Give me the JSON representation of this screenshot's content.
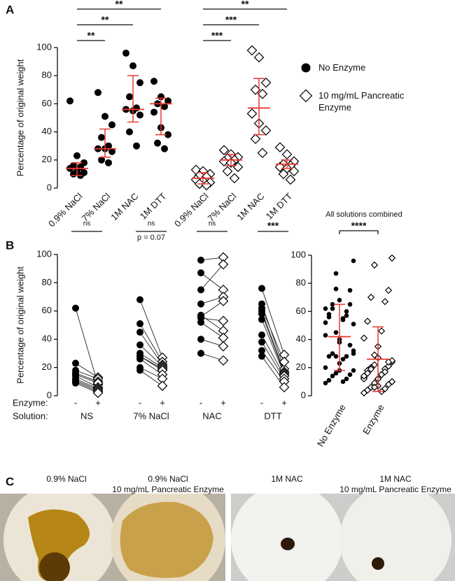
{
  "chart_data": [
    {
      "type": "dot",
      "panel": "A",
      "ylabel": "Percentage of original weight",
      "categories": [
        "0.9% NaCl",
        "7% NaCl",
        "1M NAC",
        "1M DTT",
        "0.9% NaCl",
        "7% NaCl",
        "1M NAC",
        "1M DTT"
      ],
      "ylim": [
        0,
        100
      ],
      "yticks": [
        0,
        20,
        40,
        60,
        80,
        100
      ],
      "error_color": "#e8392f",
      "series": [
        {
          "name": "No Enzyme",
          "color": "#000000",
          "marker": "circle",
          "values": [
            [
              62,
              23,
              18,
              16,
              15,
              14,
              12,
              11,
              10,
              9
            ],
            [
              68,
              51,
              45,
              36,
              30,
              28,
              28,
              26,
              20,
              18
            ],
            [
              96,
              87,
              75,
              65,
              57,
              56,
              55,
              52,
              40,
              30
            ],
            [
              76,
              65,
              62,
              60,
              58,
              54,
              43,
              38,
              32,
              28
            ],
            null,
            null,
            null,
            null
          ],
          "center": [
            14,
            28,
            56,
            60,
            null,
            null,
            null,
            null
          ],
          "low": [
            9,
            22,
            47,
            38,
            null,
            null,
            null,
            null
          ],
          "high": [
            18,
            42,
            80,
            64,
            null,
            null,
            null,
            null
          ]
        },
        {
          "name": "10 mg/mL Pancreatic Enzyme",
          "color": "#000000",
          "marker": "diamond",
          "values": [
            null,
            null,
            null,
            null,
            [
              13,
              12,
              10,
              9,
              8,
              6,
              5,
              4,
              3,
              2
            ],
            [
              27,
              24,
              22,
              21,
              20,
              19,
              18,
              15,
              12,
              7
            ],
            [
              98,
              93,
              75,
              70,
              67,
              53,
              46,
              41,
              35,
              25
            ],
            [
              29,
              24,
              19,
              17,
              16,
              15,
              14,
              12,
              10,
              6
            ]
          ],
          "center": [
            null,
            null,
            null,
            null,
            7,
            20,
            57,
            17
          ],
          "low": [
            null,
            null,
            null,
            null,
            3,
            16,
            38,
            14
          ],
          "high": [
            null,
            null,
            null,
            null,
            11,
            24,
            78,
            20
          ]
        }
      ],
      "comparisons": [
        {
          "categories": [
            0,
            1
          ],
          "label": "**"
        },
        {
          "categories": [
            0,
            2
          ],
          "label": "**"
        },
        {
          "categories": [
            0,
            3
          ],
          "label": "**"
        },
        {
          "categories": [
            4,
            5
          ],
          "label": "***"
        },
        {
          "categories": [
            4,
            6
          ],
          "label": "***"
        },
        {
          "categories": [
            4,
            7
          ],
          "label": "**"
        }
      ]
    },
    {
      "type": "paired",
      "panel": "B",
      "ylabel": "Percentage of original weight",
      "categories": [
        "NS",
        "7% NaCl",
        "NAC",
        "DTT"
      ],
      "row_labels": [
        "Enzyme:",
        "Solution:"
      ],
      "group_labels": [
        "-",
        "+"
      ],
      "ylim": [
        0,
        100
      ],
      "yticks": [
        0,
        20,
        40,
        60,
        80,
        100
      ],
      "series": [
        {
          "color": "#000000",
          "marker": "circle",
          "values": [
            [
              62,
              23,
              18,
              16,
              15,
              14,
              12,
              11,
              10,
              9
            ],
            [
              68,
              51,
              45,
              36,
              30,
              28,
              28,
              26,
              20,
              18
            ],
            [
              96,
              87,
              75,
              65,
              57,
              56,
              55,
              52,
              40,
              30
            ],
            [
              76,
              65,
              62,
              60,
              58,
              54,
              43,
              38,
              32,
              28
            ]
          ]
        },
        {
          "color": "#000000",
          "marker": "diamond",
          "values": [
            [
              8,
              13,
              12,
              10,
              9,
              6,
              5,
              4,
              3,
              2
            ],
            [
              27,
              24,
              22,
              21,
              20,
              19,
              18,
              15,
              12,
              7
            ],
            [
              98,
              75,
              93,
              70,
              46,
              67,
              53,
              41,
              35,
              25
            ],
            [
              29,
              19,
              24,
              17,
              16,
              15,
              14,
              12,
              10,
              6
            ]
          ]
        }
      ],
      "comparisons": [
        {
          "label": "ns"
        },
        {
          "label": "ns",
          "note": "p = 0.07"
        },
        {
          "label": "ns"
        },
        {
          "label": "***"
        }
      ]
    },
    {
      "type": "dot",
      "title": "All solutions combined",
      "categories": [
        "No Enzyme",
        "Enzyme"
      ],
      "ylim": [
        0,
        100
      ],
      "yticks": [
        0,
        20,
        40,
        60,
        80,
        100
      ],
      "error_color": "#e8392f",
      "series": [
        {
          "color": "#000000",
          "marker": "circle",
          "values": [
            [
              62,
              23,
              18,
              16,
              15,
              14,
              12,
              11,
              10,
              9,
              68,
              51,
              45,
              36,
              30,
              28,
              28,
              26,
              20,
              18,
              96,
              87,
              75,
              65,
              57,
              56,
              55,
              52,
              40,
              30,
              76,
              65,
              62,
              60,
              58,
              54,
              43,
              38,
              32,
              28
            ],
            null
          ],
          "center": [
            42,
            null
          ],
          "low": [
            18,
            null
          ],
          "high": [
            65,
            null
          ]
        },
        {
          "color": "#000000",
          "marker": "diamond",
          "values": [
            null,
            [
              13,
              12,
              10,
              9,
              8,
              6,
              5,
              4,
              3,
              2,
              27,
              24,
              22,
              21,
              20,
              19,
              18,
              15,
              12,
              7,
              98,
              93,
              75,
              70,
              67,
              53,
              46,
              41,
              35,
              25,
              29,
              24,
              19,
              17,
              16,
              15,
              14,
              12,
              10,
              6
            ]
          ],
          "center": [
            null,
            26
          ],
          "low": [
            null,
            3
          ],
          "high": [
            null,
            49
          ]
        }
      ],
      "comparisons": [
        {
          "categories": [
            0,
            1
          ],
          "label": "****"
        }
      ]
    }
  ],
  "photos": {
    "panel": "C",
    "labels": [
      [
        "0.9% NaCl"
      ],
      [
        "0.9% NaCl",
        "10 mg/mL Pancreatic Enzyme"
      ],
      [
        "1M NAC"
      ],
      [
        "1M NAC",
        "10 mg/mL Pancreatic Enzyme"
      ]
    ]
  }
}
